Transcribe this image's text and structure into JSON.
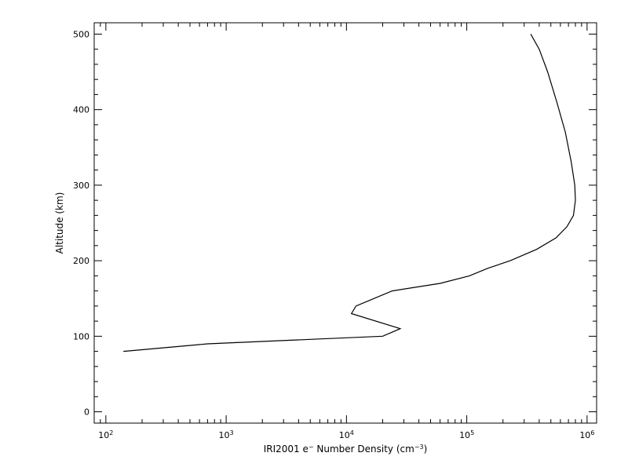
{
  "chart_data": {
    "type": "line",
    "title": "",
    "xlabel": {
      "prefix": "IRI2001 e",
      "sup1": "−",
      "mid": " Number Density (cm",
      "sup2": "−3",
      "suffix": ")"
    },
    "ylabel": "Altitude (km)",
    "xscale": "log",
    "xlim": [
      80,
      1200000
    ],
    "ylim": [
      -15,
      515
    ],
    "xticks": [
      {
        "value": 100,
        "base": "10",
        "exp": "2"
      },
      {
        "value": 1000,
        "base": "10",
        "exp": "3"
      },
      {
        "value": 10000,
        "base": "10",
        "exp": "4"
      },
      {
        "value": 100000,
        "base": "10",
        "exp": "5"
      },
      {
        "value": 1000000,
        "base": "10",
        "exp": "6"
      }
    ],
    "yticks": [
      {
        "value": 0,
        "label": "0"
      },
      {
        "value": 100,
        "label": "100"
      },
      {
        "value": 200,
        "label": "200"
      },
      {
        "value": 300,
        "label": "300"
      },
      {
        "value": 400,
        "label": "400"
      },
      {
        "value": 500,
        "label": "500"
      }
    ],
    "grid": false,
    "series": [
      {
        "points": [
          [
            140,
            80
          ],
          [
            700,
            90
          ],
          [
            20000,
            100
          ],
          [
            28000,
            110
          ],
          [
            11000,
            130
          ],
          [
            12000,
            140
          ],
          [
            24000,
            160
          ],
          [
            60000,
            170
          ],
          [
            105000,
            180
          ],
          [
            150000,
            190
          ],
          [
            230000,
            200
          ],
          [
            380000,
            215
          ],
          [
            550000,
            230
          ],
          [
            680000,
            245
          ],
          [
            770000,
            260
          ],
          [
            800000,
            280
          ],
          [
            790000,
            300
          ],
          [
            740000,
            330
          ],
          [
            660000,
            370
          ],
          [
            560000,
            410
          ],
          [
            470000,
            450
          ],
          [
            400000,
            480
          ],
          [
            340000,
            500
          ]
        ]
      }
    ]
  }
}
